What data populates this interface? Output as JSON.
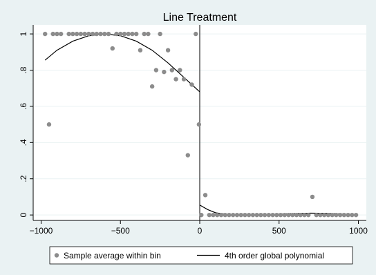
{
  "chart_data": {
    "type": "scatter",
    "title": "Line Treatment",
    "xlabel": "",
    "ylabel": "",
    "xlim": [
      -1050,
      1050
    ],
    "ylim": [
      -0.03,
      1.05
    ],
    "x_ticks": [
      -1000,
      -500,
      0,
      500,
      1000
    ],
    "x_tick_labels": [
      "−1000",
      "−500",
      "0",
      "500",
      "1000"
    ],
    "y_ticks": [
      0,
      0.2,
      0.4,
      0.6,
      0.8,
      1
    ],
    "y_tick_labels": [
      "0",
      ".2",
      ".4",
      ".6",
      ".8",
      "1"
    ],
    "cutoff_x": 0,
    "grid": true,
    "legend_position": "bottom",
    "colors": {
      "background": "#eaf2f3",
      "plot_background": "#ffffff",
      "gridline": "#eaf2f3",
      "marker": "#8c8c8c",
      "line": "#000000"
    },
    "series": [
      {
        "name": "Sample average within bin",
        "kind": "scatter",
        "points": [
          [
            -975,
            1
          ],
          [
            -950,
            0.5
          ],
          [
            -925,
            1
          ],
          [
            -900,
            1
          ],
          [
            -875,
            1
          ],
          [
            -825,
            1
          ],
          [
            -800,
            1
          ],
          [
            -775,
            1
          ],
          [
            -750,
            1
          ],
          [
            -725,
            1
          ],
          [
            -700,
            1
          ],
          [
            -675,
            1
          ],
          [
            -650,
            1
          ],
          [
            -625,
            1
          ],
          [
            -600,
            1
          ],
          [
            -575,
            1
          ],
          [
            -550,
            0.92
          ],
          [
            -525,
            1
          ],
          [
            -500,
            1
          ],
          [
            -475,
            1
          ],
          [
            -450,
            1
          ],
          [
            -425,
            1
          ],
          [
            -400,
            1
          ],
          [
            -375,
            0.91
          ],
          [
            -350,
            1
          ],
          [
            -325,
            1
          ],
          [
            -300,
            0.71
          ],
          [
            -275,
            0.8
          ],
          [
            -250,
            1
          ],
          [
            -225,
            0.79
          ],
          [
            -200,
            0.91
          ],
          [
            -175,
            0.8
          ],
          [
            -150,
            0.75
          ],
          [
            -125,
            0.8
          ],
          [
            -100,
            0.75
          ],
          [
            -75,
            0.33
          ],
          [
            -50,
            0.72
          ],
          [
            -25,
            1
          ],
          [
            -5,
            0.5
          ],
          [
            10,
            0
          ],
          [
            35,
            0.11
          ],
          [
            60,
            0
          ],
          [
            85,
            0
          ],
          [
            110,
            0
          ],
          [
            135,
            0
          ],
          [
            160,
            0
          ],
          [
            185,
            0
          ],
          [
            210,
            0
          ],
          [
            235,
            0
          ],
          [
            260,
            0
          ],
          [
            285,
            0
          ],
          [
            310,
            0
          ],
          [
            335,
            0
          ],
          [
            360,
            0
          ],
          [
            385,
            0
          ],
          [
            410,
            0
          ],
          [
            435,
            0
          ],
          [
            460,
            0
          ],
          [
            485,
            0
          ],
          [
            510,
            0
          ],
          [
            535,
            0
          ],
          [
            560,
            0
          ],
          [
            585,
            0
          ],
          [
            610,
            0
          ],
          [
            635,
            0
          ],
          [
            660,
            0
          ],
          [
            685,
            0
          ],
          [
            710,
            0.1
          ],
          [
            735,
            0
          ],
          [
            760,
            0
          ],
          [
            785,
            0
          ],
          [
            810,
            0
          ],
          [
            835,
            0
          ],
          [
            860,
            0
          ],
          [
            885,
            0
          ],
          [
            910,
            0
          ],
          [
            935,
            0
          ],
          [
            960,
            0
          ],
          [
            985,
            0
          ]
        ]
      },
      {
        "name": "4th order global polynomial",
        "kind": "line",
        "segments": [
          [
            [
              -975,
              0.855
            ],
            [
              -900,
              0.91
            ],
            [
              -800,
              0.96
            ],
            [
              -700,
              0.99
            ],
            [
              -600,
              1.0
            ],
            [
              -500,
              0.99
            ],
            [
              -400,
              0.96
            ],
            [
              -300,
              0.91
            ],
            [
              -200,
              0.84
            ],
            [
              -100,
              0.76
            ],
            [
              0,
              0.68
            ]
          ],
          [
            [
              0,
              0.055
            ],
            [
              50,
              0.03
            ],
            [
              100,
              0.012
            ],
            [
              200,
              0.0
            ],
            [
              300,
              0.0
            ],
            [
              400,
              0.002
            ],
            [
              500,
              0.005
            ],
            [
              600,
              0.008
            ],
            [
              700,
              0.01
            ],
            [
              800,
              0.009
            ],
            [
              900,
              0.005
            ],
            [
              985,
              0.0
            ]
          ]
        ]
      }
    ]
  }
}
